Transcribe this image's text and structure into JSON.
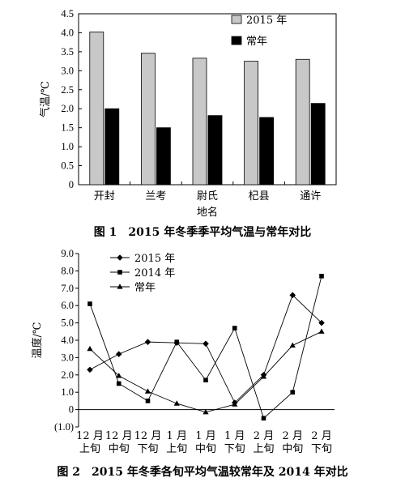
{
  "figure1": {
    "caption": "图 1　2015 年冬季季平均气温与常年对比",
    "chart_data": {
      "type": "bar",
      "categories": [
        "开封",
        "兰考",
        "尉氏",
        "杞县",
        "通许"
      ],
      "series": [
        {
          "name": "2015 年",
          "values": [
            4.02,
            3.46,
            3.33,
            3.25,
            3.3
          ],
          "color": "#c8c8c8"
        },
        {
          "name": "常年",
          "values": [
            2.0,
            1.5,
            1.82,
            1.77,
            2.14
          ],
          "color": "#000000"
        }
      ],
      "ylim": [
        0,
        4.5
      ],
      "yticks": [
        "0",
        "0.5",
        "1.0",
        "1.5",
        "2.0",
        "2.5",
        "3.0",
        "3.5",
        "4.0",
        "4.5"
      ],
      "ylabel": "气温/℃",
      "xlabel": "地名",
      "legend": "top-right",
      "grid": false
    }
  },
  "figure2": {
    "caption": "图 2　2015 年冬季各旬平均气温较常年及 2014 年对比",
    "chart_data": {
      "type": "line",
      "categories": [
        [
          "12 月",
          "上旬"
        ],
        [
          "12 月",
          "中旬"
        ],
        [
          "12 月",
          "下旬"
        ],
        [
          "1 月",
          "上旬"
        ],
        [
          "1 月",
          "中旬"
        ],
        [
          "1 月",
          "下旬"
        ],
        [
          "2 月",
          "上旬"
        ],
        [
          "2 月",
          "中旬"
        ],
        [
          "2 月",
          "下旬"
        ]
      ],
      "series": [
        {
          "name": "2015 年",
          "marker": "diamond",
          "values": [
            2.3,
            3.2,
            3.9,
            3.85,
            3.8,
            0.4,
            2.0,
            6.6,
            5.0
          ]
        },
        {
          "name": "2014 年",
          "marker": "square",
          "values": [
            6.1,
            1.5,
            0.5,
            3.9,
            1.7,
            4.7,
            -0.5,
            1.0,
            7.7
          ]
        },
        {
          "name": "常年",
          "marker": "triangle",
          "values": [
            3.5,
            1.95,
            1.05,
            0.35,
            -0.15,
            0.3,
            1.9,
            3.7,
            4.5
          ]
        }
      ],
      "ylim": [
        -1.0,
        9.0
      ],
      "yticks": [
        "(1.0)",
        "0",
        "1.0",
        "2.0",
        "3.0",
        "4.0",
        "5.0",
        "6.0",
        "7.0",
        "8.0",
        "9.0"
      ],
      "ylabel": "温度/℃",
      "legend": "top-left",
      "grid": false
    }
  }
}
